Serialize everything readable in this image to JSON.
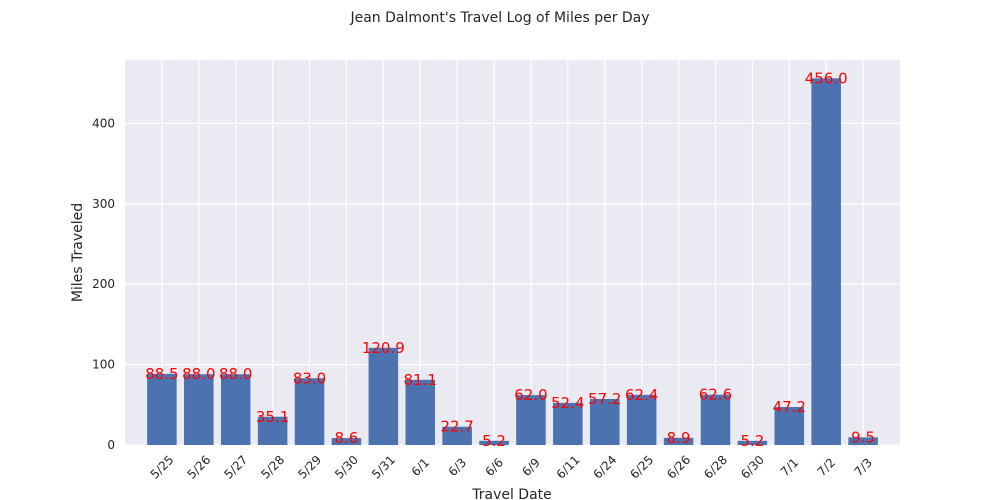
{
  "chart_data": {
    "type": "bar",
    "title": "Jean Dalmont's Travel Log of Miles per Day",
    "xlabel": "Travel Date",
    "ylabel": "Miles Traveled",
    "categories": [
      "5/25",
      "5/26",
      "5/27",
      "5/28",
      "5/29",
      "5/30",
      "5/31",
      "6/1",
      "6/3",
      "6/6",
      "6/9",
      "6/11",
      "6/24",
      "6/25",
      "6/26",
      "6/28",
      "6/30",
      "7/1",
      "7/2",
      "7/3"
    ],
    "values": [
      88.5,
      88.0,
      88.0,
      35.1,
      83.0,
      8.6,
      120.9,
      81.1,
      22.7,
      5.2,
      62.0,
      52.4,
      57.2,
      62.4,
      8.9,
      62.6,
      5.2,
      47.2,
      456.0,
      9.5
    ],
    "value_labels": [
      "88.5",
      "88.0",
      "88.0",
      "35.1",
      "83.0",
      "8.6",
      "120.9",
      "81.1",
      "22.7",
      "5.2",
      "62.0",
      "52.4",
      "57.2",
      "62.4",
      "8.9",
      "62.6",
      "5.2",
      "47.2",
      "456.0",
      "9.5"
    ],
    "yticks": [
      0,
      100,
      200,
      300,
      400
    ],
    "ytick_labels": [
      "0",
      "100",
      "200",
      "300",
      "400"
    ],
    "ylim": [
      0,
      478.8
    ],
    "grid": true,
    "colors": {
      "bar": "#4c72b0",
      "plot_background": "#eaeaf2",
      "grid": "#ffffff",
      "data_label": "#ff0000",
      "text": "#262626"
    }
  }
}
